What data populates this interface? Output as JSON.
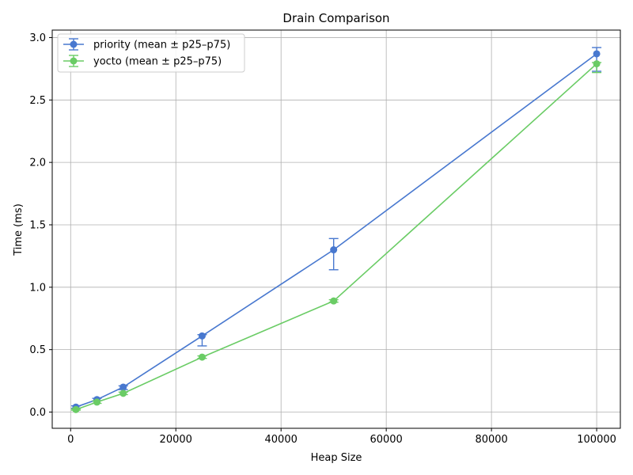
{
  "chart_data": {
    "type": "line",
    "title": "Drain Comparison",
    "xlabel": "Heap Size",
    "ylabel": "Time (ms)",
    "xlim": [
      -3500,
      104500
    ],
    "ylim": [
      -0.13,
      3.06
    ],
    "xticks": [
      0,
      20000,
      40000,
      60000,
      80000,
      100000
    ],
    "xtick_labels": [
      "0",
      "20000",
      "40000",
      "60000",
      "80000",
      "100000"
    ],
    "yticks": [
      0.0,
      0.5,
      1.0,
      1.5,
      2.0,
      2.5,
      3.0
    ],
    "ytick_labels": [
      "0.0",
      "0.5",
      "1.0",
      "1.5",
      "2.0",
      "2.5",
      "3.0"
    ],
    "grid": true,
    "legend_position": "upper-left",
    "x": [
      1000,
      5000,
      10000,
      25000,
      50000,
      100000
    ],
    "series": [
      {
        "name": "priority (mean ± p25–p75)",
        "color": "#4878cf",
        "values": [
          0.04,
          0.1,
          0.2,
          0.61,
          1.3,
          2.87
        ],
        "err_low": [
          0.03,
          0.09,
          0.18,
          0.53,
          1.14,
          2.73
        ],
        "err_high": [
          0.05,
          0.11,
          0.21,
          0.62,
          1.39,
          2.92
        ]
      },
      {
        "name": "yocto (mean ± p25–p75)",
        "color": "#6acc65",
        "values": [
          0.02,
          0.08,
          0.15,
          0.44,
          0.89,
          2.79
        ],
        "err_low": [
          0.015,
          0.07,
          0.14,
          0.43,
          0.88,
          2.72
        ],
        "err_high": [
          0.025,
          0.09,
          0.16,
          0.45,
          0.9,
          2.8
        ]
      }
    ]
  }
}
